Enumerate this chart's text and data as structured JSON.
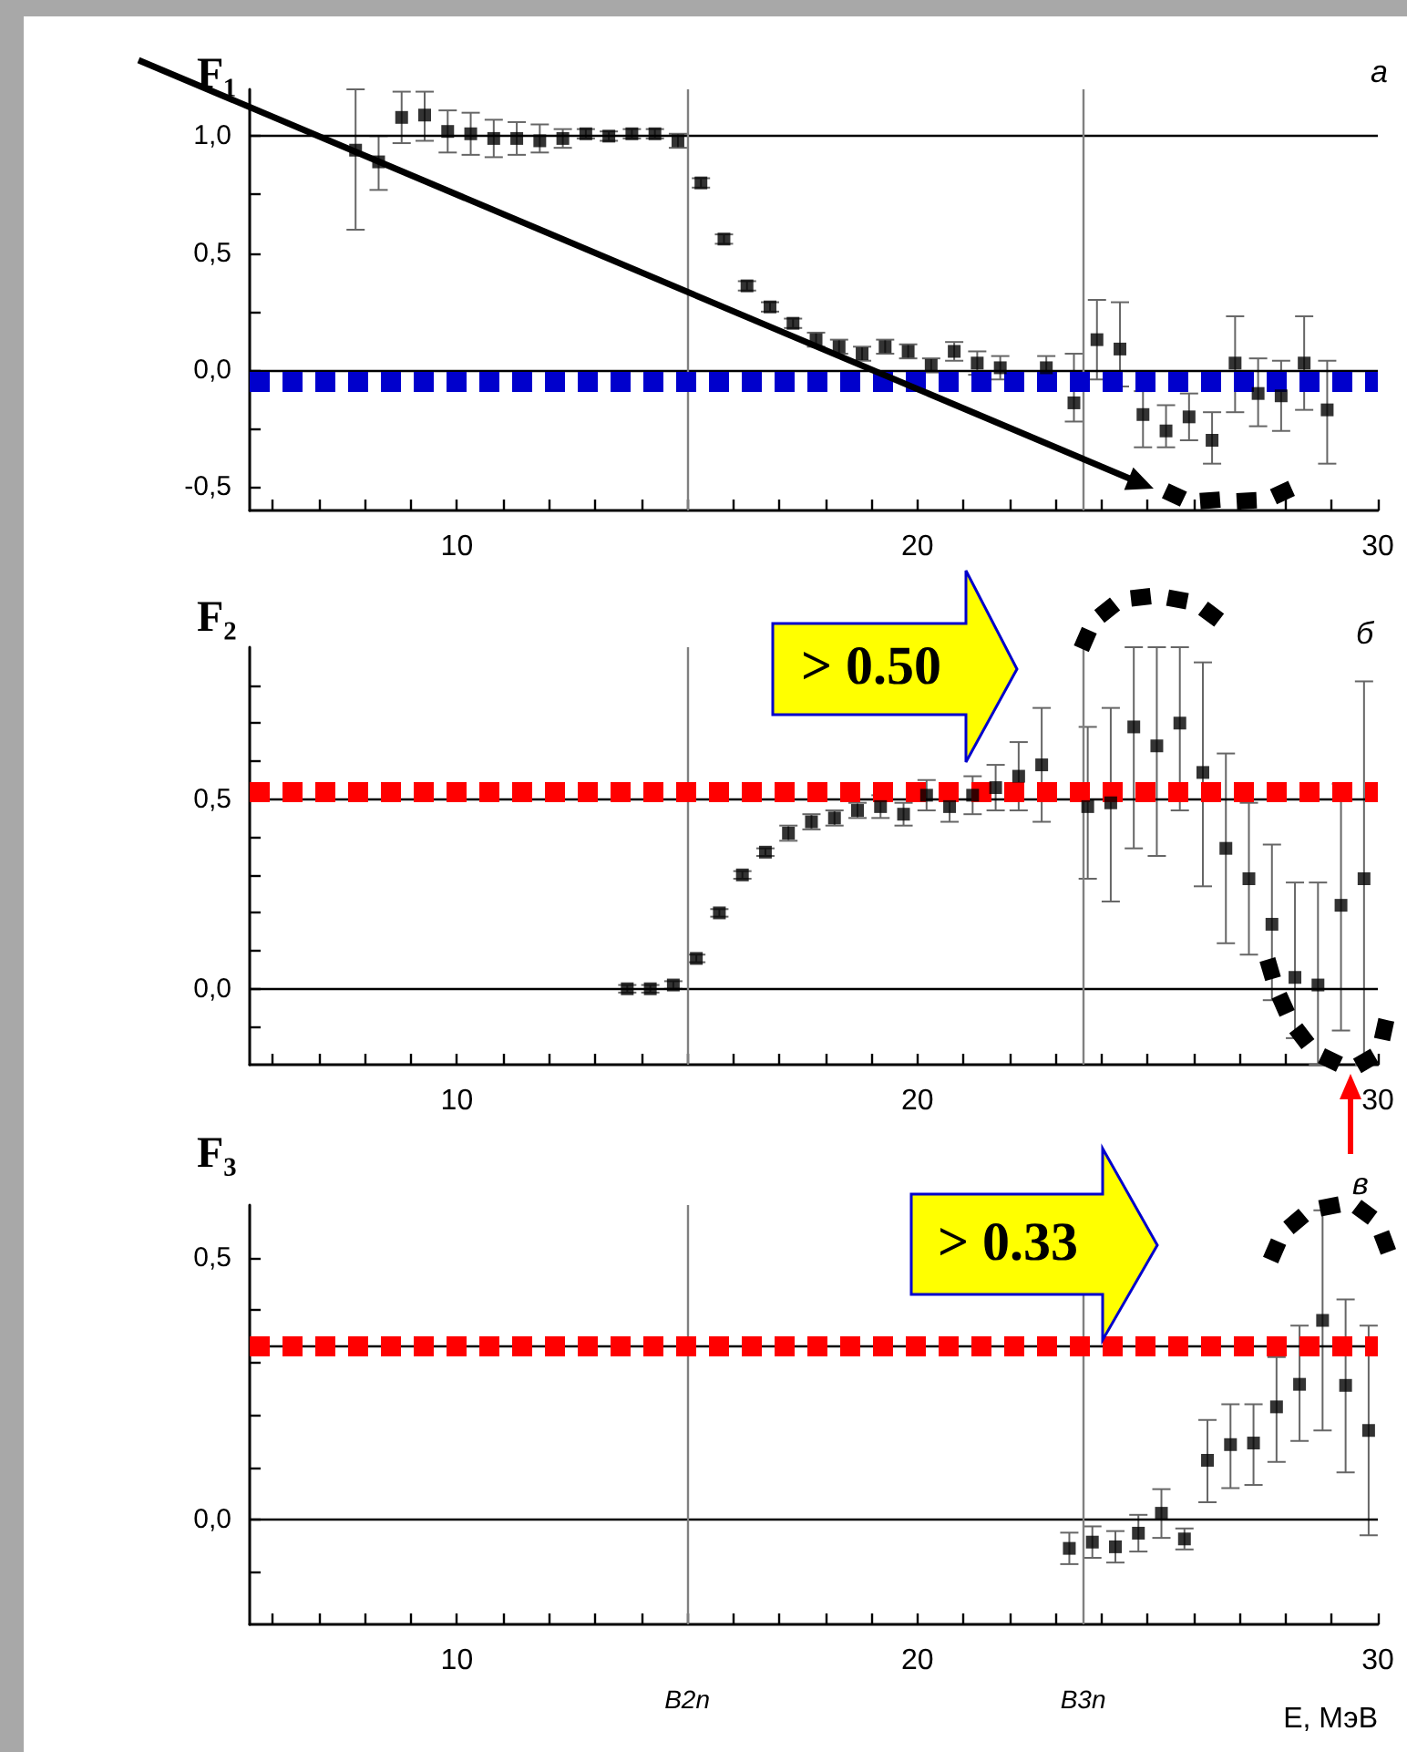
{
  "chart_data": [
    {
      "type": "scatter",
      "marker": "square",
      "color": "#000000",
      "annotations": [
        "F₁",
        "а"
      ],
      "x": [
        7.8,
        8.3,
        8.8,
        9.3,
        9.8,
        10.3,
        10.8,
        11.3,
        11.8,
        12.3,
        12.8,
        13.3,
        13.8,
        14.3,
        14.8,
        15.3,
        15.8,
        16.3,
        16.8,
        17.3,
        17.8,
        18.3,
        18.8,
        19.3,
        19.8,
        20.3,
        20.8,
        21.3,
        21.8,
        22.8,
        23.4,
        23.9,
        24.4,
        24.9,
        25.4,
        25.9,
        26.4,
        26.9,
        27.4,
        27.9,
        28.4,
        28.9
      ],
      "values": [
        0.94,
        0.89,
        1.08,
        1.09,
        1.02,
        1.01,
        0.99,
        0.99,
        0.98,
        0.99,
        1.01,
        1.0,
        1.01,
        1.01,
        0.98,
        0.8,
        0.56,
        0.36,
        0.27,
        0.2,
        0.13,
        0.1,
        0.07,
        0.1,
        0.08,
        0.02,
        0.08,
        0.03,
        0.01,
        0.01,
        -0.14,
        0.13,
        0.09,
        -0.19,
        -0.26,
        -0.2,
        -0.3,
        0.03,
        -0.1,
        -0.11,
        0.03,
        -0.17
      ],
      "errors": [
        [
          0.6,
          1.2
        ],
        [
          0.77,
          1.0
        ],
        [
          0.97,
          1.19
        ],
        [
          0.98,
          1.19
        ],
        [
          0.93,
          1.11
        ],
        [
          0.92,
          1.1
        ],
        [
          0.91,
          1.07
        ],
        [
          0.92,
          1.06
        ],
        [
          0.93,
          1.05
        ],
        [
          0.95,
          1.03
        ],
        0.02,
        0.02,
        0.02,
        0.02,
        0.03,
        0.02,
        0.02,
        0.02,
        0.02,
        0.02,
        0.03,
        0.03,
        0.03,
        0.03,
        0.03,
        0.03,
        0.04,
        0.05,
        0.05,
        0.05,
        [
          -0.22,
          0.07
        ],
        [
          -0.04,
          0.3
        ],
        [
          -0.07,
          0.29
        ],
        [
          -0.33,
          -0.09
        ],
        [
          -0.33,
          -0.15
        ],
        [
          -0.3,
          -0.1
        ],
        [
          -0.4,
          -0.18
        ],
        [
          -0.18,
          0.23
        ],
        [
          -0.24,
          0.05
        ],
        [
          -0.26,
          0.04
        ],
        [
          -0.17,
          0.23
        ],
        [
          -0.4,
          0.04
        ]
      ],
      "xlim": [
        5.5,
        30
      ],
      "xticks": [
        {
          "value": 6,
          "label": null
        },
        {
          "value": 7,
          "label": null
        },
        {
          "value": 8,
          "label": null
        },
        {
          "value": 9,
          "label": null
        },
        10,
        {
          "value": 11,
          "label": null
        },
        {
          "value": 12,
          "label": null
        },
        {
          "value": 13,
          "label": null
        },
        {
          "value": 14,
          "label": null
        },
        {
          "value": 15,
          "label": null
        },
        {
          "value": 16,
          "label": null
        },
        {
          "value": 17,
          "label": null
        },
        {
          "value": 18,
          "label": null
        },
        {
          "value": 19,
          "label": null
        },
        20,
        {
          "value": 21,
          "label": null
        },
        {
          "value": 22,
          "label": null
        },
        {
          "value": 23,
          "label": null
        },
        {
          "value": 24,
          "label": null
        },
        {
          "value": 25,
          "label": null
        },
        {
          "value": 26,
          "label": null
        },
        {
          "value": 27,
          "label": null
        },
        {
          "value": 28,
          "label": null
        },
        {
          "value": 29,
          "label": null
        },
        30
      ],
      "ylim": [
        -0.6,
        1.2
      ],
      "yticks": [
        {
          "value": -0.5,
          "label": "-0,5"
        },
        {
          "value": -0.25,
          "label": null
        },
        {
          "value": 0,
          "label": "0,0"
        },
        {
          "value": 0.25,
          "label": null
        },
        {
          "value": 0.5,
          "label": "0,5"
        },
        {
          "value": 0.75,
          "label": null
        },
        {
          "value": 1,
          "label": "1,0"
        }
      ],
      "ref_lines": [
        {
          "axis": "y",
          "value": 0,
          "color": "#000000",
          "line_style": "solid"
        },
        {
          "axis": "y",
          "value": 1,
          "color": "#000000",
          "line_style": "solid"
        },
        {
          "axis": "x",
          "value": 15,
          "color": "#808080",
          "line_style": "solid"
        },
        {
          "axis": "x",
          "value": 23.6,
          "color": "#808080",
          "line_style": "solid"
        },
        {
          "axis": "y",
          "value": -0.05,
          "color": "#0000cc",
          "line_style": "dotted"
        }
      ]
    },
    {
      "type": "scatter",
      "marker": "square",
      "color": "#000000",
      "annotations": [
        "F₂",
        "б",
        "> 0.50"
      ],
      "x": [
        13.7,
        14.2,
        14.7,
        15.2,
        15.7,
        16.2,
        16.7,
        17.2,
        17.7,
        18.2,
        18.7,
        19.2,
        19.7,
        20.2,
        20.7,
        21.2,
        21.7,
        22.2,
        22.7,
        23.7,
        24.2,
        24.7,
        25.2,
        25.7,
        26.2,
        26.7,
        27.2,
        27.7,
        28.2,
        28.7,
        29.2,
        29.7
      ],
      "values": [
        0.0,
        0.0,
        0.01,
        0.08,
        0.2,
        0.3,
        0.36,
        0.41,
        0.44,
        0.45,
        0.47,
        0.48,
        0.46,
        0.51,
        0.48,
        0.51,
        0.53,
        0.56,
        0.59,
        0.48,
        0.49,
        0.69,
        0.64,
        0.7,
        0.57,
        0.37,
        0.29,
        0.17,
        0.03,
        0.01,
        0.22,
        0.29
      ],
      "errors": [
        0.01,
        0.01,
        0.01,
        0.01,
        0.01,
        0.01,
        0.01,
        0.02,
        0.02,
        0.02,
        0.02,
        0.03,
        0.03,
        0.04,
        0.04,
        0.05,
        0.06,
        0.09,
        0.15,
        [
          0.29,
          0.69
        ],
        [
          0.23,
          0.74
        ],
        [
          0.37,
          0.9
        ],
        [
          0.35,
          0.9
        ],
        [
          0.47,
          0.9
        ],
        [
          0.27,
          0.86
        ],
        [
          0.12,
          0.62
        ],
        [
          0.09,
          0.49
        ],
        [
          -0.03,
          0.38
        ],
        [
          -0.13,
          0.28
        ],
        [
          -0.2,
          0.28
        ],
        [
          -0.11,
          0.54
        ],
        [
          -0.2,
          0.81
        ]
      ],
      "xlim": [
        5.5,
        30
      ],
      "xticks": [
        {
          "value": 6,
          "label": null
        },
        {
          "value": 7,
          "label": null
        },
        {
          "value": 8,
          "label": null
        },
        {
          "value": 9,
          "label": null
        },
        10,
        {
          "value": 11,
          "label": null
        },
        {
          "value": 12,
          "label": null
        },
        {
          "value": 13,
          "label": null
        },
        {
          "value": 14,
          "label": null
        },
        {
          "value": 15,
          "label": null
        },
        {
          "value": 16,
          "label": null
        },
        {
          "value": 17,
          "label": null
        },
        {
          "value": 18,
          "label": null
        },
        {
          "value": 19,
          "label": null
        },
        20,
        {
          "value": 21,
          "label": null
        },
        {
          "value": 22,
          "label": null
        },
        {
          "value": 23,
          "label": null
        },
        {
          "value": 24,
          "label": null
        },
        {
          "value": 25,
          "label": null
        },
        {
          "value": 26,
          "label": null
        },
        {
          "value": 27,
          "label": null
        },
        {
          "value": 28,
          "label": null
        },
        {
          "value": 29,
          "label": null
        },
        30
      ],
      "ylim": [
        -0.2,
        0.9
      ],
      "yticks": [
        {
          "value": -0.1,
          "label": null
        },
        {
          "value": 0,
          "label": "0,0"
        },
        {
          "value": 0.1,
          "label": null
        },
        {
          "value": 0.2,
          "label": null
        },
        {
          "value": 0.3,
          "label": null
        },
        {
          "value": 0.4,
          "label": null
        },
        {
          "value": 0.5,
          "label": "0,5"
        },
        {
          "value": 0.6,
          "label": null
        },
        {
          "value": 0.7,
          "label": null
        },
        {
          "value": 0.8,
          "label": null
        }
      ],
      "ref_lines": [
        {
          "axis": "y",
          "value": 0,
          "color": "#000000",
          "line_style": "solid"
        },
        {
          "axis": "y",
          "value": 0.5,
          "color": "#000000",
          "line_style": "solid"
        },
        {
          "axis": "x",
          "value": 15,
          "color": "#808080",
          "line_style": "solid"
        },
        {
          "axis": "x",
          "value": 23.6,
          "color": "#808080",
          "line_style": "solid"
        },
        {
          "axis": "y",
          "value": 0.515,
          "color": "#ff0000",
          "line_style": "dotted"
        }
      ]
    },
    {
      "type": "scatter",
      "marker": "square",
      "color": "#000000",
      "annotations": [
        "F₃",
        "в",
        "> 0.33"
      ],
      "xlabel": "E, МэВ",
      "x": [
        23.3,
        23.8,
        24.3,
        24.8,
        25.3,
        25.8,
        26.3,
        26.8,
        27.3,
        27.8,
        28.3,
        28.8,
        29.3,
        29.8
      ],
      "values": [
        -0.055,
        -0.043,
        -0.052,
        -0.026,
        0.012,
        -0.037,
        0.113,
        0.143,
        0.146,
        0.215,
        0.258,
        0.38,
        0.256,
        0.17
      ],
      "errors": [
        0.03,
        0.03,
        0.03,
        0.035,
        [
          -0.035,
          0.058
        ],
        0.02,
        [
          0.033,
          0.19
        ],
        [
          0.06,
          0.22
        ],
        [
          0.066,
          0.22
        ],
        [
          0.11,
          0.31
        ],
        [
          0.15,
          0.37
        ],
        [
          0.17,
          0.59
        ],
        [
          0.09,
          0.42
        ],
        [
          -0.03,
          0.37
        ]
      ],
      "xlim": [
        5.5,
        30
      ],
      "xticks": [
        {
          "value": 6,
          "label": null
        },
        {
          "value": 7,
          "label": null
        },
        {
          "value": 8,
          "label": null
        },
        {
          "value": 9,
          "label": null
        },
        10,
        {
          "value": 11,
          "label": null
        },
        {
          "value": 12,
          "label": null
        },
        {
          "value": 13,
          "label": null
        },
        {
          "value": 14,
          "label": null
        },
        {
          "value": 15,
          "label": null
        },
        {
          "value": 16,
          "label": null
        },
        {
          "value": 17,
          "label": null
        },
        {
          "value": 18,
          "label": null
        },
        {
          "value": 19,
          "label": null
        },
        20,
        {
          "value": 21,
          "label": null
        },
        {
          "value": 22,
          "label": null
        },
        {
          "value": 23,
          "label": null
        },
        {
          "value": 24,
          "label": null
        },
        {
          "value": 25,
          "label": null
        },
        {
          "value": 26,
          "label": null
        },
        {
          "value": 27,
          "label": null
        },
        {
          "value": 28,
          "label": null
        },
        {
          "value": 29,
          "label": null
        },
        30
      ],
      "ylim": [
        -0.2,
        0.6
      ],
      "yticks": [
        {
          "value": -0.1,
          "label": null
        },
        {
          "value": 0,
          "label": "0,0"
        },
        {
          "value": 0.1,
          "label": null
        },
        {
          "value": 0.2,
          "label": null
        },
        {
          "value": 0.3,
          "label": null
        },
        {
          "value": 0.4,
          "label": null
        },
        {
          "value": 0.5,
          "label": "0,5"
        }
      ],
      "ref_lines": [
        {
          "axis": "y",
          "value": 0,
          "color": "#000000",
          "line_style": "solid"
        },
        {
          "axis": "y",
          "value": 0.33,
          "color": "#000000",
          "line_style": "solid"
        },
        {
          "axis": "x",
          "value": 15,
          "color": "#808080",
          "line_style": "solid",
          "label": "B2n"
        },
        {
          "axis": "x",
          "value": 23.6,
          "color": "#808080",
          "line_style": "solid",
          "label": "B3n"
        },
        {
          "axis": "y",
          "value": 0.33,
          "color": "#ff0000",
          "line_style": "dotted"
        }
      ]
    }
  ]
}
